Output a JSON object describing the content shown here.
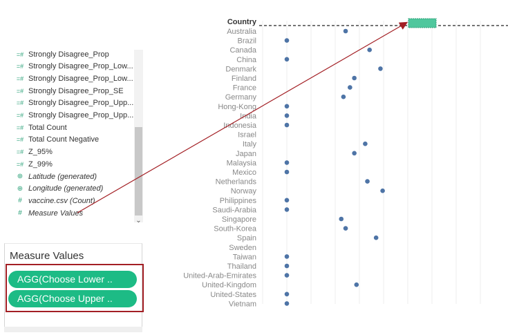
{
  "field_list": {
    "items": [
      {
        "label": "Strongly Disagree_Prop",
        "icon": "calc-measure-icon",
        "italic": false
      },
      {
        "label": "Strongly Disagree_Prop_Low...",
        "icon": "calc-measure-icon",
        "italic": false
      },
      {
        "label": "Strongly Disagree_Prop_Low...",
        "icon": "calc-measure-icon",
        "italic": false
      },
      {
        "label": "Strongly Disagree_Prop_SE",
        "icon": "calc-measure-icon",
        "italic": false
      },
      {
        "label": "Strongly Disagree_Prop_Upp...",
        "icon": "calc-measure-icon",
        "italic": false
      },
      {
        "label": "Strongly Disagree_Prop_Upp...",
        "icon": "calc-measure-icon",
        "italic": false
      },
      {
        "label": "Total Count",
        "icon": "calc-measure-icon",
        "italic": false
      },
      {
        "label": "Total Count Negative",
        "icon": "calc-measure-icon",
        "italic": false
      },
      {
        "label": "Z_95%",
        "icon": "calc-measure-icon",
        "italic": false
      },
      {
        "label": "Z_99%",
        "icon": "calc-measure-icon",
        "italic": false
      },
      {
        "label": "Latitude (generated)",
        "icon": "globe-icon",
        "italic": true
      },
      {
        "label": "Longitude (generated)",
        "icon": "globe-icon",
        "italic": true
      },
      {
        "label": "vaccine.csv (Count)",
        "icon": "hash-icon",
        "italic": true
      },
      {
        "label": "Measure Values",
        "icon": "hash-icon",
        "italic": true
      }
    ]
  },
  "measure_values": {
    "title": "Measure Values",
    "pills": [
      "AGG(Choose Lower ..",
      "AGG(Choose Upper .."
    ]
  },
  "colors": {
    "field_icon": "#2fa37b",
    "pill": "#1dbb85",
    "highlight_border": "#a31f24",
    "dot": "#4e74a6",
    "drag_target": "#4fc79d",
    "arrow": "#a31f24"
  },
  "chart_data": {
    "type": "scatter",
    "row_header": "Country",
    "categories": [
      "Australia",
      "Brazil",
      "Canada",
      "China",
      "Denmark",
      "Finland",
      "France",
      "Germany",
      "Hong-Kong",
      "India",
      "Indonesia",
      "Israel",
      "Italy",
      "Japan",
      "Malaysia",
      "Mexico",
      "Netherlands",
      "Norway",
      "Philippines",
      "Saudi-Arabia",
      "Singapore",
      "South-Korea",
      "Spain",
      "Sweden",
      "Taiwan",
      "Thailand",
      "United-Arab-Emirates",
      "United-Kingdom",
      "United-States",
      "Vietnam"
    ],
    "values": [
      0.27,
      0.0,
      0.38,
      0.0,
      0.43,
      0.31,
      0.29,
      0.26,
      0.0,
      0.0,
      0.0,
      null,
      0.36,
      0.31,
      0.0,
      0.0,
      0.37,
      0.44,
      0.0,
      0.0,
      0.25,
      0.27,
      0.41,
      null,
      0.0,
      0.0,
      0.0,
      0.32,
      0.0,
      0.0
    ],
    "xlim": [
      -0.1,
      1.0
    ],
    "grid": true
  }
}
